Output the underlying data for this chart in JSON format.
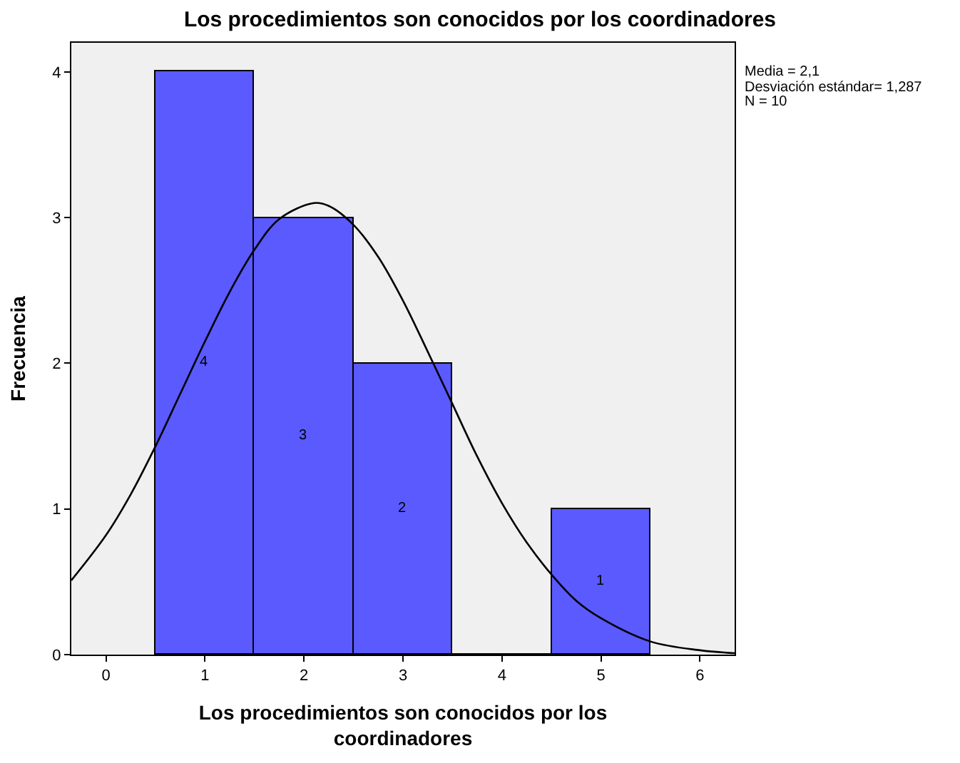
{
  "chart_data": {
    "type": "histogram",
    "title": "Los procedimientos son conocidos por los coordinadores",
    "xlabel": "Los procedimientos son conocidos por los coordinadores",
    "ylabel": "Frecuencia",
    "bins": [
      0.5,
      1.5,
      2.5,
      3.5,
      4.5,
      5.5
    ],
    "values": [
      4,
      3,
      2,
      0,
      1
    ],
    "value_labels": [
      "4",
      "3",
      "2",
      null,
      "1"
    ],
    "color": "#5a5aff",
    "series": [
      {
        "type": "line",
        "color": "#000000",
        "x": [
          -0.35,
          0,
          0.25,
          0.5,
          0.75,
          1,
          1.25,
          1.5,
          1.75,
          2.1,
          2.25,
          2.5,
          2.75,
          3,
          3.25,
          3.5,
          3.75,
          4,
          4.25,
          4.5,
          4.75,
          5,
          5.5,
          6,
          6.35
        ],
        "values": [
          0.51,
          0.82,
          1.1,
          1.43,
          1.79,
          2.15,
          2.49,
          2.78,
          2.99,
          3.1,
          3.08,
          2.95,
          2.73,
          2.43,
          2.08,
          1.72,
          1.36,
          1.04,
          0.77,
          0.55,
          0.37,
          0.25,
          0.09,
          0.03,
          0.01
        ]
      }
    ],
    "xlim": [
      -0.35,
      6.35
    ],
    "xticks": [
      0,
      1,
      2,
      3,
      4,
      5,
      6
    ],
    "ylim": [
      0,
      4.2
    ],
    "yticks": [
      0,
      1,
      2,
      3,
      4
    ],
    "grid": false,
    "annotations": [
      "Media = 2,1",
      "Desviación estándar= 1,287",
      "N = 10"
    ]
  }
}
